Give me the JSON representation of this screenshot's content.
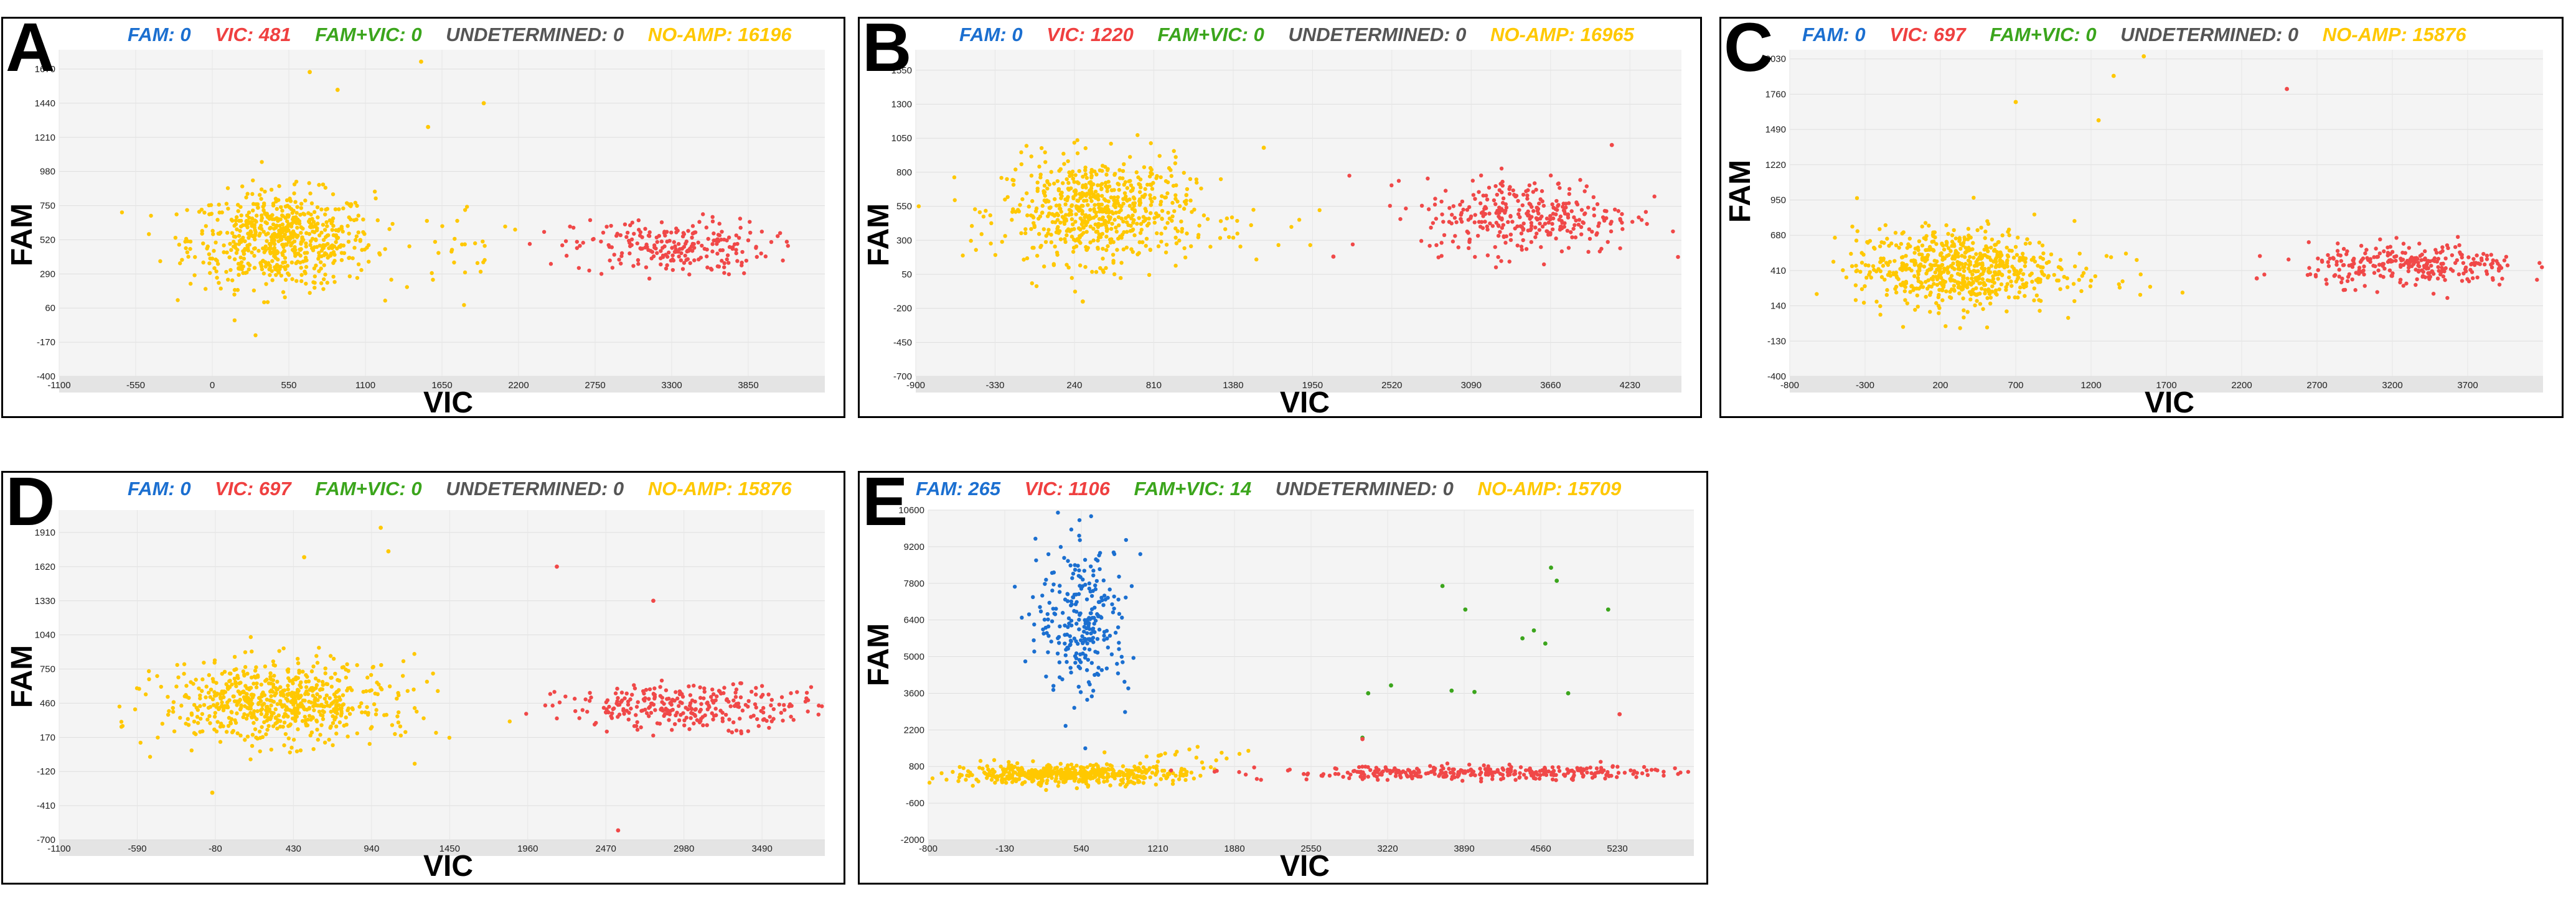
{
  "figure": {
    "panels": [
      {
        "letter": "A",
        "legend": {
          "fam": "FAM: 0",
          "vic": "VIC: 481",
          "famvic": "FAM+VIC: 0",
          "und": "UNDETERMINED: 0",
          "noamp": "NO-AMP: 16196"
        },
        "xlabel": "VIC",
        "ylabel": "FAM"
      },
      {
        "letter": "B",
        "legend": {
          "fam": "FAM: 0",
          "vic": "VIC: 1220",
          "famvic": "FAM+VIC: 0",
          "und": "UNDETERMINED: 0",
          "noamp": "NO-AMP: 16965"
        },
        "xlabel": "VIC",
        "ylabel": "FAM"
      },
      {
        "letter": "C",
        "legend": {
          "fam": "FAM: 0",
          "vic": "VIC: 697",
          "famvic": "FAM+VIC: 0",
          "und": "UNDETERMINED: 0",
          "noamp": "NO-AMP: 15876"
        },
        "xlabel": "VIC",
        "ylabel": "FAM"
      },
      {
        "letter": "D",
        "legend": {
          "fam": "FAM: 0",
          "vic": "VIC: 697",
          "famvic": "FAM+VIC: 0",
          "und": "UNDETERMINED: 0",
          "noamp": "NO-AMP: 15876"
        },
        "xlabel": "VIC",
        "ylabel": "FAM"
      },
      {
        "letter": "E",
        "legend": {
          "fam": "FAM: 265",
          "vic": "VIC: 1106",
          "famvic": "FAM+VIC: 14",
          "und": "UNDETERMINED: 0",
          "noamp": "NO-AMP: 15709"
        },
        "xlabel": "VIC",
        "ylabel": "FAM"
      }
    ]
  },
  "colors": {
    "fam": "#1b6fd0",
    "vic": "#f04848",
    "famvic": "#3ba51c",
    "noamp": "#ffc800",
    "plot_bg": "#f4f4f4",
    "tick_band": "#e4e4e4"
  },
  "chart_data": [
    {
      "type": "scatter",
      "panel": "A",
      "xlabel": "VIC",
      "ylabel": "FAM",
      "xlim": [
        -1100,
        4400
      ],
      "ylim": [
        -400,
        1800
      ],
      "xticks": [
        -1100,
        -550,
        0,
        550,
        1100,
        1650,
        2200,
        2750,
        3300,
        3850
      ],
      "yticks": [
        -400,
        -170,
        60,
        290,
        520,
        750,
        980,
        1210,
        1440,
        1670
      ],
      "clusters": [
        {
          "series": "NO-AMP",
          "center": [
            500,
            520
          ],
          "spread": [
            330,
            160
          ],
          "count": 650
        },
        {
          "series": "NO-AMP",
          "center": [
            1850,
            480
          ],
          "spread": [
            220,
            140
          ],
          "count": 25
        },
        {
          "series": "VIC",
          "center": [
            3300,
            470
          ],
          "spread": [
            350,
            95
          ],
          "count": 230
        }
      ],
      "outliers": [
        {
          "series": "NO-AMP",
          "x": 1500,
          "y": 1720
        },
        {
          "series": "NO-AMP",
          "x": 900,
          "y": 1530
        },
        {
          "series": "NO-AMP",
          "x": 1550,
          "y": 1280
        },
        {
          "series": "NO-AMP",
          "x": 1950,
          "y": 1440
        },
        {
          "series": "NO-AMP",
          "x": 700,
          "y": 1650
        }
      ]
    },
    {
      "type": "scatter",
      "panel": "B",
      "xlabel": "VIC",
      "ylabel": "FAM",
      "xlim": [
        -900,
        4600
      ],
      "ylim": [
        -700,
        1700
      ],
      "xticks": [
        -900,
        -330,
        240,
        810,
        1380,
        1950,
        2520,
        3090,
        3660,
        4230
      ],
      "yticks": [
        -700,
        -450,
        -200,
        50,
        300,
        550,
        800,
        1050,
        1300,
        1550
      ],
      "clusters": [
        {
          "series": "NO-AMP",
          "center": [
            400,
            520
          ],
          "spread": [
            340,
            190
          ],
          "count": 650
        },
        {
          "series": "NO-AMP",
          "center": [
            1500,
            300
          ],
          "spread": [
            250,
            110
          ],
          "count": 15
        },
        {
          "series": "VIC",
          "center": [
            3500,
            480
          ],
          "spread": [
            380,
            140
          ],
          "count": 330
        }
      ],
      "outliers": [
        {
          "series": "NO-AMP",
          "x": 300,
          "y": -150
        },
        {
          "series": "NO-AMP",
          "x": 1600,
          "y": 980
        },
        {
          "series": "VIC",
          "x": 4100,
          "y": 1000
        },
        {
          "series": "VIC",
          "x": 2100,
          "y": 180
        }
      ]
    },
    {
      "type": "scatter",
      "panel": "C",
      "xlabel": "VIC",
      "ylabel": "FAM",
      "xlim": [
        -800,
        4200
      ],
      "ylim": [
        -400,
        2100
      ],
      "xticks": [
        -800,
        -300,
        200,
        700,
        1200,
        1700,
        2200,
        2700,
        3200,
        3700
      ],
      "yticks": [
        -400,
        -130,
        140,
        410,
        680,
        950,
        1220,
        1490,
        1760,
        2030
      ],
      "clusters": [
        {
          "series": "NO-AMP",
          "center": [
            300,
            430
          ],
          "spread": [
            330,
            150
          ],
          "count": 650
        },
        {
          "series": "NO-AMP",
          "center": [
            1200,
            420
          ],
          "spread": [
            250,
            150
          ],
          "count": 20
        },
        {
          "series": "VIC",
          "center": [
            3350,
            450
          ],
          "spread": [
            350,
            80
          ],
          "count": 280
        }
      ],
      "outliers": [
        {
          "series": "NO-AMP",
          "x": 1550,
          "y": 2050
        },
        {
          "series": "NO-AMP",
          "x": 1350,
          "y": 1900
        },
        {
          "series": "NO-AMP",
          "x": 1250,
          "y": 1560
        },
        {
          "series": "NO-AMP",
          "x": 700,
          "y": 1700
        },
        {
          "series": "VIC",
          "x": 2500,
          "y": 1800
        },
        {
          "series": "VIC",
          "x": 2300,
          "y": 350
        }
      ]
    },
    {
      "type": "scatter",
      "panel": "D",
      "xlabel": "VIC",
      "ylabel": "FAM",
      "xlim": [
        -1100,
        3900
      ],
      "ylim": [
        -700,
        2100
      ],
      "xticks": [
        -1100,
        -590,
        -80,
        430,
        940,
        1450,
        1960,
        2470,
        2980,
        3490
      ],
      "yticks": [
        -700,
        -410,
        -120,
        170,
        460,
        750,
        1040,
        1330,
        1620,
        1910
      ],
      "clusters": [
        {
          "series": "NO-AMP",
          "center": [
            300,
            460
          ],
          "spread": [
            360,
            170
          ],
          "count": 650
        },
        {
          "series": "NO-AMP",
          "center": [
            1100,
            520
          ],
          "spread": [
            200,
            180
          ],
          "count": 18
        },
        {
          "series": "VIC",
          "center": [
            3050,
            430
          ],
          "spread": [
            430,
            90
          ],
          "count": 300
        }
      ],
      "outliers": [
        {
          "series": "NO-AMP",
          "x": 1000,
          "y": 1950
        },
        {
          "series": "NO-AMP",
          "x": 1050,
          "y": 1750
        },
        {
          "series": "NO-AMP",
          "x": 500,
          "y": 1700
        },
        {
          "series": "NO-AMP",
          "x": -100,
          "y": -300
        },
        {
          "series": "VIC",
          "x": 2150,
          "y": 1620
        },
        {
          "series": "VIC",
          "x": 2780,
          "y": 1330
        },
        {
          "series": "VIC",
          "x": 2550,
          "y": -620
        }
      ]
    },
    {
      "type": "scatter",
      "panel": "E",
      "xlabel": "VIC",
      "ylabel": "FAM",
      "xlim": [
        -800,
        5900
      ],
      "ylim": [
        -2000,
        10600
      ],
      "xticks": [
        -800,
        -130,
        540,
        1210,
        1880,
        2550,
        3220,
        3890,
        4560,
        5230
      ],
      "yticks": [
        -2000,
        -600,
        800,
        2200,
        3600,
        5000,
        6400,
        7800,
        9200,
        10600
      ],
      "clusters": [
        {
          "series": "NO-AMP",
          "center": [
            400,
            500
          ],
          "spread": [
            500,
            180
          ],
          "count": 500
        },
        {
          "series": "NO-AMP",
          "center": [
            1500,
            1000
          ],
          "spread": [
            400,
            400
          ],
          "count": 25
        },
        {
          "series": "FAM",
          "center": [
            560,
            6400
          ],
          "spread": [
            200,
            1450
          ],
          "count": 265
        },
        {
          "series": "VIC",
          "center": [
            4000,
            550
          ],
          "spread": [
            900,
            130
          ],
          "count": 330
        }
      ],
      "outliers": [
        {
          "series": "FAM+VIC",
          "x": 3250,
          "y": 3900
        },
        {
          "series": "FAM+VIC",
          "x": 3050,
          "y": 3600
        },
        {
          "series": "FAM+VIC",
          "x": 3000,
          "y": 1900
        },
        {
          "series": "FAM+VIC",
          "x": 3700,
          "y": 7700
        },
        {
          "series": "FAM+VIC",
          "x": 3780,
          "y": 3700
        },
        {
          "series": "FAM+VIC",
          "x": 3980,
          "y": 3650
        },
        {
          "series": "FAM+VIC",
          "x": 3900,
          "y": 6800
        },
        {
          "series": "FAM+VIC",
          "x": 4400,
          "y": 5700
        },
        {
          "series": "FAM+VIC",
          "x": 4500,
          "y": 6000
        },
        {
          "series": "FAM+VIC",
          "x": 4600,
          "y": 5500
        },
        {
          "series": "FAM+VIC",
          "x": 4650,
          "y": 8400
        },
        {
          "series": "FAM+VIC",
          "x": 4700,
          "y": 7900
        },
        {
          "series": "FAM+VIC",
          "x": 5150,
          "y": 6800
        },
        {
          "series": "FAM+VIC",
          "x": 4800,
          "y": 3600
        },
        {
          "series": "VIC",
          "x": 5250,
          "y": 2800
        },
        {
          "series": "VIC",
          "x": 3000,
          "y": 1850
        }
      ]
    }
  ]
}
